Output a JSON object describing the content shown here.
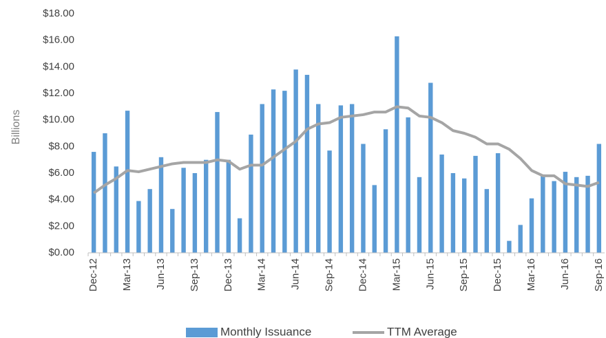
{
  "chart_data": {
    "type": "bar",
    "y_label": "Billions",
    "categories": [
      "Dec-12",
      null,
      null,
      "Mar-13",
      null,
      null,
      "Jun-13",
      null,
      null,
      "Sep-13",
      null,
      null,
      "Dec-13",
      null,
      null,
      "Mar-14",
      null,
      null,
      "Jun-14",
      null,
      null,
      "Sep-14",
      null,
      null,
      "Dec-14",
      null,
      null,
      "Mar-15",
      null,
      null,
      "Jun-15",
      null,
      null,
      "Sep-15",
      null,
      null,
      "Dec-15",
      null,
      null,
      "Mar-16",
      null,
      null,
      "Jun-16",
      null,
      null,
      "Sep-16"
    ],
    "series": [
      {
        "name": "Monthly Issuance",
        "type": "bar",
        "color": "#5b9bd5",
        "values": [
          7.6,
          9.0,
          6.5,
          10.7,
          3.9,
          4.8,
          7.2,
          3.3,
          6.4,
          6.0,
          7.0,
          10.6,
          7.0,
          2.6,
          8.9,
          11.2,
          12.3,
          12.2,
          13.8,
          13.4,
          11.2,
          7.7,
          11.1,
          11.2,
          8.2,
          5.1,
          9.3,
          16.3,
          10.2,
          5.7,
          12.8,
          7.4,
          6.0,
          5.6,
          7.3,
          4.8,
          7.5,
          0.9,
          2.1,
          4.1,
          5.9,
          5.4,
          6.1,
          5.7,
          5.8,
          8.2
        ]
      },
      {
        "name": "TTM Average",
        "type": "line",
        "color": "#a5a5a5",
        "values": [
          4.5,
          5.1,
          5.6,
          6.2,
          6.1,
          6.3,
          6.5,
          6.7,
          6.8,
          6.8,
          6.8,
          7.0,
          6.9,
          6.3,
          6.6,
          6.6,
          7.2,
          7.8,
          8.4,
          9.3,
          9.7,
          9.8,
          10.2,
          10.3,
          10.4,
          10.6,
          10.6,
          11.0,
          10.9,
          10.3,
          10.2,
          9.8,
          9.2,
          9.0,
          8.7,
          8.2,
          8.2,
          7.8,
          7.1,
          6.2,
          5.8,
          5.8,
          5.2,
          5.1,
          5.0,
          5.3
        ]
      }
    ],
    "ylim": [
      0,
      18
    ],
    "yticks": [
      {
        "value": 0,
        "label": "$0.00"
      },
      {
        "value": 2,
        "label": "$2.00"
      },
      {
        "value": 4,
        "label": "$4.00"
      },
      {
        "value": 6,
        "label": "$6.00"
      },
      {
        "value": 8,
        "label": "$8.00"
      },
      {
        "value": 10,
        "label": "$10.00"
      },
      {
        "value": 12,
        "label": "$12.00"
      },
      {
        "value": 14,
        "label": "$14.00"
      },
      {
        "value": 16,
        "label": "$16.00"
      },
      {
        "value": 18,
        "label": "$18.00"
      }
    ],
    "grid": false,
    "legend": "bottom"
  }
}
